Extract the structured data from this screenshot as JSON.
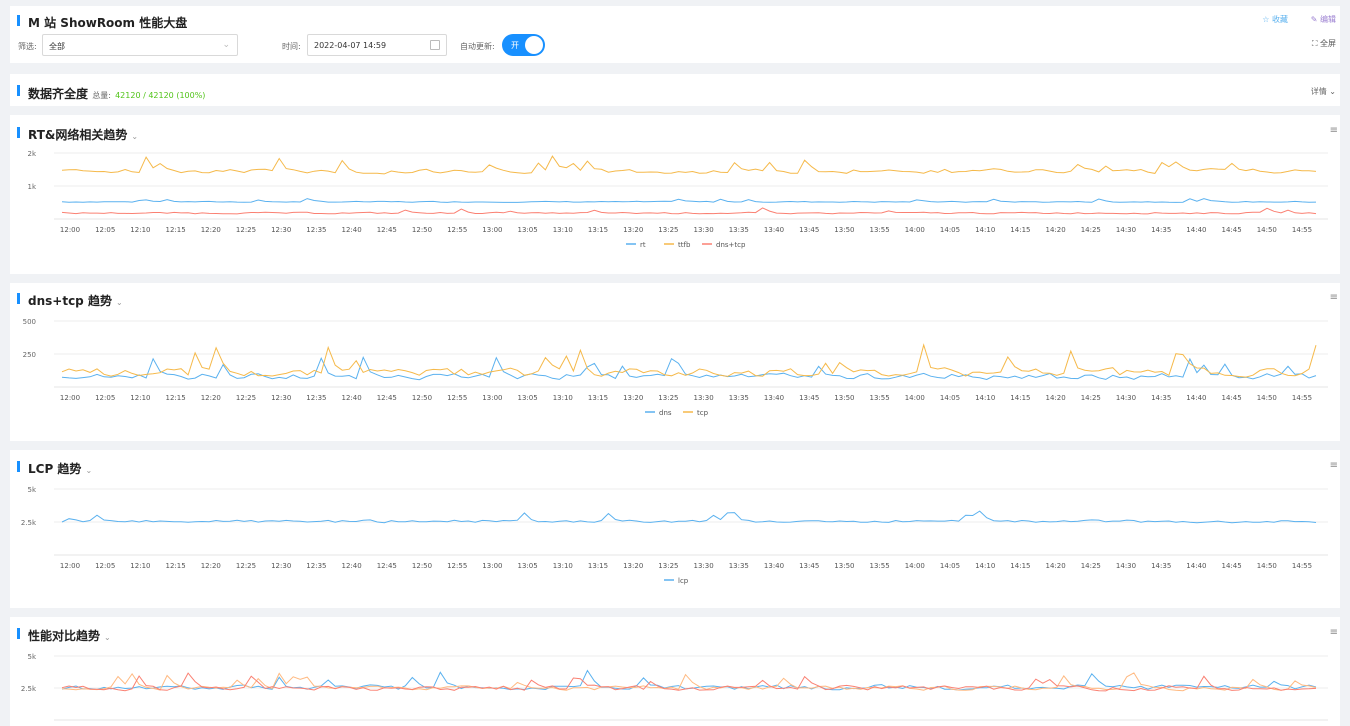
{
  "header": {
    "title": "M 站 ShowRoom 性能大盘",
    "favorite_label": "收藏",
    "edit_label": "编辑",
    "filter_label": "筛选:",
    "filter_value": "全部",
    "time_label": "时间:",
    "time_value": "2022-04-07 14:59",
    "auto_update_label": "自动更新:",
    "auto_update_value": "开",
    "fullscreen_label": "全屏"
  },
  "completeness": {
    "title": "数据齐全度",
    "total_label": "总量:",
    "total_value": "42120 / 42120 (100%)",
    "detail_label": "详情"
  },
  "x_ticks": [
    "12:00",
    "12:05",
    "12:10",
    "12:15",
    "12:20",
    "12:25",
    "12:30",
    "12:35",
    "12:40",
    "12:45",
    "12:50",
    "12:55",
    "13:00",
    "13:05",
    "13:10",
    "13:15",
    "13:20",
    "13:25",
    "13:30",
    "13:35",
    "13:40",
    "13:45",
    "13:50",
    "13:55",
    "14:00",
    "14:05",
    "14:10",
    "14:15",
    "14:20",
    "14:25",
    "14:30",
    "14:35",
    "14:40",
    "14:45",
    "14:50",
    "14:55"
  ],
  "colors": {
    "blue": "#5ab1ef",
    "orange": "#ffb980",
    "red": "#fa8072",
    "yellow": "#f5b94a"
  },
  "chart_data": [
    {
      "type": "line",
      "title": "RT&网络相关趋势",
      "yticks": [
        "2k",
        "1k"
      ],
      "ylim": [
        0,
        2000
      ],
      "legend": "bottom-center",
      "series": [
        {
          "name": "rt",
          "color": "#5ab1ef",
          "base": 520,
          "amp": 40
        },
        {
          "name": "ttfb",
          "color": "#f5b94a",
          "base": 1450,
          "amp": 180
        },
        {
          "name": "dns+tcp",
          "color": "#fa8072",
          "base": 180,
          "amp": 60
        }
      ]
    },
    {
      "type": "line",
      "title": "dns+tcp 趋势",
      "yticks": [
        "500",
        "250"
      ],
      "ylim": [
        0,
        500
      ],
      "legend": "bottom-center",
      "series": [
        {
          "name": "dns",
          "color": "#5ab1ef",
          "base": 80,
          "amp": 60
        },
        {
          "name": "tcp",
          "color": "#f5b94a",
          "base": 110,
          "amp": 80
        }
      ]
    },
    {
      "type": "line",
      "title": "LCP 趋势",
      "yticks": [
        "5k",
        "2.5k"
      ],
      "ylim": [
        0,
        5000
      ],
      "legend": "bottom-center",
      "series": [
        {
          "name": "lcp",
          "color": "#5ab1ef",
          "base": 2550,
          "amp": 250
        }
      ]
    },
    {
      "type": "line",
      "title": "性能对比趋势",
      "yticks": [
        "5k",
        "2.5k"
      ],
      "ylim": [
        0,
        5000
      ],
      "legend": "bottom-center",
      "series": [
        {
          "name": "",
          "color": "#5ab1ef",
          "base": 2550,
          "amp": 500
        },
        {
          "name": "",
          "color": "#ffb980",
          "base": 2500,
          "amp": 450
        },
        {
          "name": "",
          "color": "#fa8072",
          "base": 2500,
          "amp": 500
        }
      ]
    }
  ]
}
